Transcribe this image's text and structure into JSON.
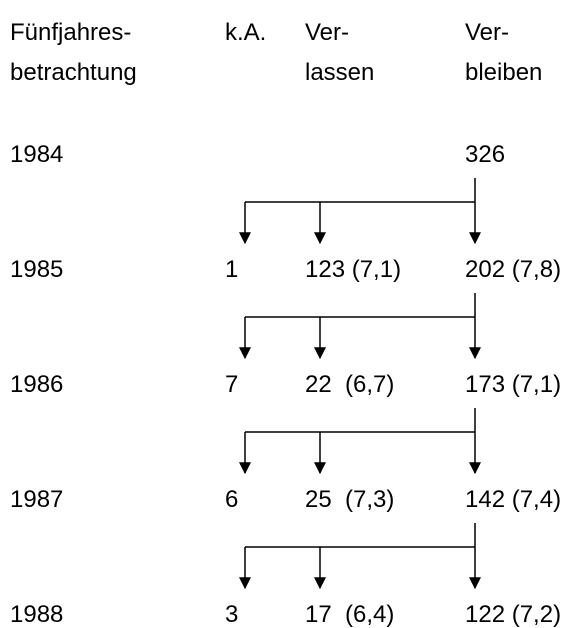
{
  "header": {
    "period": [
      "Fünfjahres-",
      "betrachtung"
    ],
    "ka": "k.A.",
    "verlassen": [
      "Ver-",
      "lassen"
    ],
    "verbleiben": [
      "Ver-",
      "bleiben"
    ]
  },
  "rows": [
    {
      "year": "1984",
      "verbleiben": "326"
    },
    {
      "year": "1985",
      "ka": "1",
      "verlassen": "123 (7,1)",
      "verbleiben": "202 (7,8)"
    },
    {
      "year": "1986",
      "ka": "7",
      "verlassen": "22  (6,7)",
      "verbleiben": "173 (7,1)"
    },
    {
      "year": "1987",
      "ka": "6",
      "verlassen": "25  (7,3)",
      "verbleiben": "142 (7,4)"
    },
    {
      "year": "1988",
      "ka": "3",
      "verlassen": "17  (6,4)",
      "verbleiben": "122 (7,2)"
    }
  ]
}
